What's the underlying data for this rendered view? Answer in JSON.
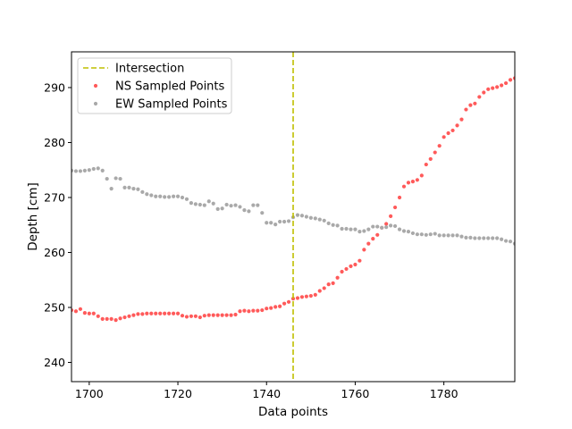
{
  "chart_data": {
    "type": "scatter",
    "xlabel": "Data points",
    "ylabel": "Depth [cm]",
    "xlim": [
      1696,
      1796
    ],
    "ylim": [
      236.5,
      296.5
    ],
    "xticks": [
      1700,
      1720,
      1740,
      1760,
      1780
    ],
    "yticks": [
      240,
      250,
      260,
      270,
      280,
      290
    ],
    "grid": false,
    "legend_position": "top-left",
    "intersection": {
      "name": "Intersection",
      "x": 1746,
      "color": "#bfbf00",
      "style": "dashed"
    },
    "series": [
      {
        "name": "NS Sampled Points",
        "color": "#ff5a5a",
        "points": [
          [
            1696,
            249.5
          ],
          [
            1697,
            249.3
          ],
          [
            1698,
            249.7
          ],
          [
            1699,
            249.0
          ],
          [
            1700,
            248.9
          ],
          [
            1701,
            248.9
          ],
          [
            1702,
            248.4
          ],
          [
            1703,
            247.9
          ],
          [
            1704,
            247.9
          ],
          [
            1705,
            247.9
          ],
          [
            1706,
            247.7
          ],
          [
            1707,
            248.0
          ],
          [
            1708,
            248.2
          ],
          [
            1709,
            248.4
          ],
          [
            1710,
            248.6
          ],
          [
            1711,
            248.8
          ],
          [
            1712,
            248.8
          ],
          [
            1713,
            248.9
          ],
          [
            1714,
            248.9
          ],
          [
            1715,
            248.9
          ],
          [
            1716,
            248.9
          ],
          [
            1717,
            248.9
          ],
          [
            1718,
            248.9
          ],
          [
            1719,
            248.9
          ],
          [
            1720,
            248.9
          ],
          [
            1721,
            248.5
          ],
          [
            1722,
            248.3
          ],
          [
            1723,
            248.4
          ],
          [
            1724,
            248.4
          ],
          [
            1725,
            248.2
          ],
          [
            1726,
            248.5
          ],
          [
            1727,
            248.6
          ],
          [
            1728,
            248.6
          ],
          [
            1729,
            248.6
          ],
          [
            1730,
            248.6
          ],
          [
            1731,
            248.6
          ],
          [
            1732,
            248.6
          ],
          [
            1733,
            248.7
          ],
          [
            1734,
            249.3
          ],
          [
            1735,
            249.4
          ],
          [
            1736,
            249.3
          ],
          [
            1737,
            249.4
          ],
          [
            1738,
            249.4
          ],
          [
            1739,
            249.5
          ],
          [
            1740,
            249.8
          ],
          [
            1741,
            249.9
          ],
          [
            1742,
            250.1
          ],
          [
            1743,
            250.2
          ],
          [
            1744,
            250.7
          ],
          [
            1745,
            251.0
          ],
          [
            1746,
            251.6
          ],
          [
            1747,
            251.7
          ],
          [
            1748,
            251.9
          ],
          [
            1749,
            252.0
          ],
          [
            1750,
            252.1
          ],
          [
            1751,
            252.3
          ],
          [
            1752,
            253.0
          ],
          [
            1753,
            253.5
          ],
          [
            1754,
            254.2
          ],
          [
            1755,
            254.4
          ],
          [
            1756,
            255.4
          ],
          [
            1757,
            256.5
          ],
          [
            1758,
            257.0
          ],
          [
            1759,
            257.5
          ],
          [
            1760,
            257.8
          ],
          [
            1761,
            258.5
          ],
          [
            1762,
            260.5
          ],
          [
            1763,
            261.6
          ],
          [
            1764,
            262.5
          ],
          [
            1765,
            263.2
          ],
          [
            1766,
            264.5
          ],
          [
            1767,
            265.2
          ],
          [
            1768,
            266.6
          ],
          [
            1769,
            268.2
          ],
          [
            1770,
            270.0
          ],
          [
            1771,
            272.0
          ],
          [
            1772,
            272.7
          ],
          [
            1773,
            272.9
          ],
          [
            1774,
            273.2
          ],
          [
            1775,
            274.0
          ],
          [
            1776,
            276.0
          ],
          [
            1777,
            277.0
          ],
          [
            1778,
            278.2
          ],
          [
            1779,
            279.4
          ],
          [
            1780,
            281.0
          ],
          [
            1781,
            281.7
          ],
          [
            1782,
            282.2
          ],
          [
            1783,
            283.1
          ],
          [
            1784,
            284.2
          ],
          [
            1785,
            286.0
          ],
          [
            1786,
            286.8
          ],
          [
            1787,
            287.1
          ],
          [
            1788,
            288.3
          ],
          [
            1789,
            289.1
          ],
          [
            1790,
            289.7
          ],
          [
            1791,
            289.9
          ],
          [
            1792,
            290.1
          ],
          [
            1793,
            290.4
          ],
          [
            1794,
            290.8
          ],
          [
            1795,
            291.4
          ],
          [
            1796,
            291.7
          ]
        ]
      },
      {
        "name": "EW Sampled Points",
        "color": "#a9a9a9",
        "points": [
          [
            1696,
            274.9
          ],
          [
            1697,
            274.8
          ],
          [
            1698,
            274.8
          ],
          [
            1699,
            274.9
          ],
          [
            1700,
            275.0
          ],
          [
            1701,
            275.2
          ],
          [
            1702,
            275.3
          ],
          [
            1703,
            274.9
          ],
          [
            1704,
            273.4
          ],
          [
            1705,
            271.6
          ],
          [
            1706,
            273.5
          ],
          [
            1707,
            273.4
          ],
          [
            1708,
            271.8
          ],
          [
            1709,
            271.8
          ],
          [
            1710,
            271.6
          ],
          [
            1711,
            271.5
          ],
          [
            1712,
            271.0
          ],
          [
            1713,
            270.6
          ],
          [
            1714,
            270.4
          ],
          [
            1715,
            270.2
          ],
          [
            1716,
            270.2
          ],
          [
            1717,
            270.1
          ],
          [
            1718,
            270.1
          ],
          [
            1719,
            270.2
          ],
          [
            1720,
            270.2
          ],
          [
            1721,
            270.0
          ],
          [
            1722,
            269.7
          ],
          [
            1723,
            269.0
          ],
          [
            1724,
            268.8
          ],
          [
            1725,
            268.7
          ],
          [
            1726,
            268.6
          ],
          [
            1727,
            269.3
          ],
          [
            1728,
            268.9
          ],
          [
            1729,
            267.9
          ],
          [
            1730,
            268.0
          ],
          [
            1731,
            268.7
          ],
          [
            1732,
            268.5
          ],
          [
            1733,
            268.6
          ],
          [
            1734,
            268.3
          ],
          [
            1735,
            267.7
          ],
          [
            1736,
            267.5
          ],
          [
            1737,
            268.6
          ],
          [
            1738,
            268.6
          ],
          [
            1739,
            267.2
          ],
          [
            1740,
            265.4
          ],
          [
            1741,
            265.4
          ],
          [
            1742,
            265.1
          ],
          [
            1743,
            265.6
          ],
          [
            1744,
            265.6
          ],
          [
            1745,
            265.7
          ],
          [
            1746,
            266.4
          ],
          [
            1747,
            266.8
          ],
          [
            1748,
            266.7
          ],
          [
            1749,
            266.5
          ],
          [
            1750,
            266.3
          ],
          [
            1751,
            266.2
          ],
          [
            1752,
            266.0
          ],
          [
            1753,
            265.8
          ],
          [
            1754,
            265.3
          ],
          [
            1755,
            265.0
          ],
          [
            1756,
            264.9
          ],
          [
            1757,
            264.3
          ],
          [
            1758,
            264.3
          ],
          [
            1759,
            264.2
          ],
          [
            1760,
            264.2
          ],
          [
            1761,
            263.8
          ],
          [
            1762,
            263.9
          ],
          [
            1763,
            264.2
          ],
          [
            1764,
            264.7
          ],
          [
            1765,
            264.7
          ],
          [
            1766,
            264.5
          ],
          [
            1767,
            264.6
          ],
          [
            1768,
            264.9
          ],
          [
            1769,
            264.8
          ],
          [
            1770,
            264.2
          ],
          [
            1771,
            263.9
          ],
          [
            1772,
            263.8
          ],
          [
            1773,
            263.5
          ],
          [
            1774,
            263.3
          ],
          [
            1775,
            263.3
          ],
          [
            1776,
            263.2
          ],
          [
            1777,
            263.3
          ],
          [
            1778,
            263.4
          ],
          [
            1779,
            263.1
          ],
          [
            1780,
            263.1
          ],
          [
            1781,
            263.1
          ],
          [
            1782,
            263.1
          ],
          [
            1783,
            263.1
          ],
          [
            1784,
            262.9
          ],
          [
            1785,
            262.7
          ],
          [
            1786,
            262.7
          ],
          [
            1787,
            262.6
          ],
          [
            1788,
            262.6
          ],
          [
            1789,
            262.6
          ],
          [
            1790,
            262.6
          ],
          [
            1791,
            262.6
          ],
          [
            1792,
            262.6
          ],
          [
            1793,
            262.4
          ],
          [
            1794,
            262.1
          ],
          [
            1795,
            262.0
          ],
          [
            1796,
            261.6
          ]
        ]
      }
    ]
  }
}
